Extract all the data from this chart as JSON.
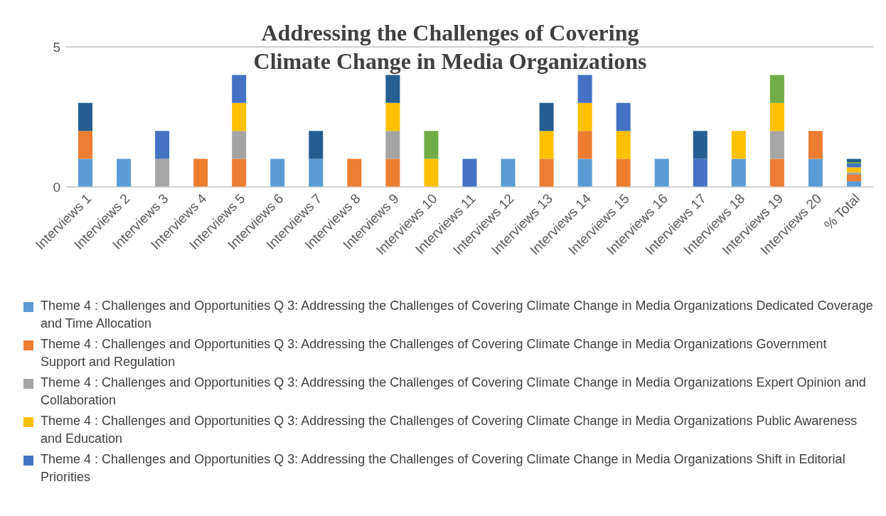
{
  "chart_data": {
    "type": "bar",
    "title": "Addressing the Challenges of Covering Climate Change in Media Organizations",
    "stacked": true,
    "categories": [
      "Interviews 1",
      "Interviews 2",
      "Interviews 3",
      "Interviews 4",
      "Interviews 5",
      "Interviews 6",
      "Interviews 7",
      "Interviews 8",
      "Interviews 9",
      "Interviews 10",
      "Interviews 11",
      "Interviews 12",
      "Interviews 13",
      "Interviews 14",
      "Interviews 15",
      "Interviews 16",
      "Interviews 17",
      "Interviews 18",
      "Interviews 19",
      "Interviews 20",
      "% Total"
    ],
    "series": [
      {
        "name": "Theme 4 : Challenges and Opportunities Q 3: Addressing the Challenges of Covering Climate Change in Media Organizations Dedicated Coverage and Time Allocation",
        "color": "#5b9bd5",
        "values": [
          1,
          1,
          null,
          null,
          null,
          1,
          1,
          null,
          null,
          null,
          null,
          1,
          null,
          1,
          null,
          1,
          null,
          1,
          null,
          1,
          0.2
        ]
      },
      {
        "name": "Theme 4 : Challenges and Opportunities Q 3: Addressing the Challenges of Covering Climate Change in Media Organizations Government Support and Regulation",
        "color": "#ed7d31",
        "values": [
          1,
          null,
          null,
          1,
          1,
          null,
          null,
          1,
          1,
          null,
          null,
          null,
          1,
          1,
          1,
          null,
          null,
          null,
          1,
          1,
          0.23
        ]
      },
      {
        "name": "Theme 4 : Challenges and Opportunities Q 3: Addressing the Challenges of Covering Climate Change in Media Organizations Expert Opinion and Collaboration",
        "color": "#a5a5a5",
        "values": [
          null,
          null,
          1,
          null,
          1,
          null,
          null,
          null,
          1,
          null,
          null,
          null,
          null,
          null,
          null,
          null,
          null,
          null,
          1,
          null,
          0.09
        ]
      },
      {
        "name": "Theme 4 : Challenges and Opportunities Q 3: Addressing the Challenges of Covering Climate Change in Media Organizations Public Awareness and Education",
        "color": "#ffc000",
        "values": [
          null,
          null,
          null,
          null,
          1,
          null,
          null,
          null,
          1,
          1,
          null,
          null,
          1,
          1,
          1,
          null,
          null,
          1,
          1,
          null,
          0.18
        ]
      },
      {
        "name": "Theme 4 : Challenges and Opportunities Q 3: Addressing the Challenges of Covering Climate Change in Media Organizations Shift in Editorial Priorities",
        "color": "#4472c4",
        "values": [
          null,
          null,
          1,
          null,
          1,
          null,
          null,
          null,
          null,
          null,
          1,
          null,
          null,
          1,
          1,
          null,
          1,
          null,
          null,
          null,
          0.14
        ]
      },
      {
        "color": "#70ad47",
        "values": [
          null,
          null,
          null,
          null,
          null,
          null,
          null,
          null,
          null,
          1,
          null,
          null,
          null,
          null,
          null,
          null,
          null,
          null,
          1,
          null,
          0.05
        ]
      },
      {
        "color": "#255e91",
        "values": [
          1,
          null,
          null,
          null,
          null,
          null,
          1,
          null,
          1,
          null,
          null,
          null,
          1,
          null,
          null,
          null,
          1,
          null,
          null,
          null,
          0.11
        ]
      }
    ],
    "ylim": [
      0,
      5
    ],
    "yticks": [
      0,
      5
    ],
    "grid": "y",
    "legend": "bottom"
  }
}
